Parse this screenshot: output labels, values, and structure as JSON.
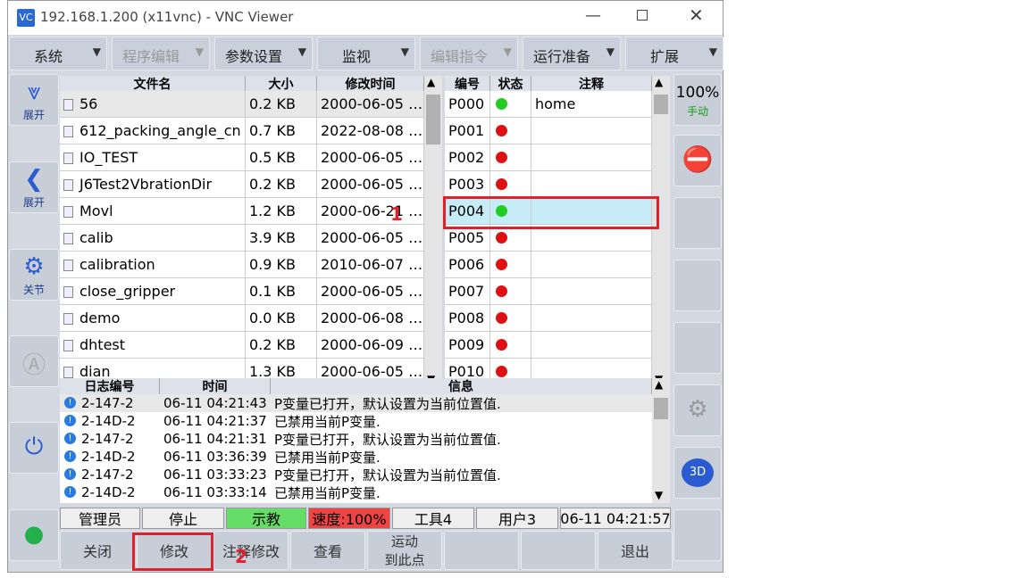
{
  "window": {
    "icon": "VC",
    "title": "192.168.1.200 (x11vnc) - VNC Viewer"
  },
  "menu": [
    {
      "label": "系统",
      "enabled": true
    },
    {
      "label": "程序编辑",
      "enabled": false
    },
    {
      "label": "参数设置",
      "enabled": true
    },
    {
      "label": "监视",
      "enabled": true
    },
    {
      "label": "编辑指令",
      "enabled": false
    },
    {
      "label": "运行准备",
      "enabled": true
    },
    {
      "label": "扩展",
      "enabled": true
    }
  ],
  "left_buttons": [
    "展开",
    "展开",
    "关节"
  ],
  "file_table": {
    "headers": [
      "文件名",
      "大小",
      "修改时间"
    ],
    "rows": [
      [
        "56",
        "0.2 KB",
        "2000-06-05 …"
      ],
      [
        "612_packing_angle_cn",
        "0.7 KB",
        "2022-08-08 …"
      ],
      [
        "IO_TEST",
        "0.5 KB",
        "2000-06-05 …"
      ],
      [
        "J6Test2VbrationDir",
        "0.2 KB",
        "2000-06-05 …"
      ],
      [
        "Movl",
        "1.2 KB",
        "2000-06-21 …"
      ],
      [
        "calib",
        "3.9 KB",
        "2000-06-05 …"
      ],
      [
        "calibration",
        "0.9 KB",
        "2010-06-07 …"
      ],
      [
        "close_gripper",
        "0.1 KB",
        "2000-06-05 …"
      ],
      [
        "demo",
        "0.0 KB",
        "2000-06-08 …"
      ],
      [
        "dhtest",
        "0.2 KB",
        "2000-06-09 …"
      ],
      [
        "dian",
        "1.3 KB",
        "2000-06-05 …"
      ]
    ]
  },
  "point_table": {
    "headers": [
      "编号",
      "状态",
      "注释"
    ],
    "rows": [
      {
        "id": "P000",
        "status": "#22cc22",
        "comment": "home"
      },
      {
        "id": "P001",
        "status": "#dd1111"
      },
      {
        "id": "P002",
        "status": "#dd1111"
      },
      {
        "id": "P003",
        "status": "#dd1111"
      },
      {
        "id": "P004",
        "status": "#22cc22"
      },
      {
        "id": "P005",
        "status": "#dd1111"
      },
      {
        "id": "P006",
        "status": "#dd1111"
      },
      {
        "id": "P007",
        "status": "#dd1111"
      },
      {
        "id": "P008",
        "status": "#dd1111"
      },
      {
        "id": "P009",
        "status": "#dd1111"
      },
      {
        "id": "P010",
        "status": "#dd1111"
      }
    ]
  },
  "log_table": {
    "headers": [
      "日志编号",
      "时间",
      "信息"
    ],
    "rows": [
      [
        "2-147-2",
        "06-11 04:21:43",
        "P变量已打开，默认设置为当前位置值."
      ],
      [
        "2-14D-2",
        "06-11 04:21:37",
        "已禁用当前P变量."
      ],
      [
        "2-147-2",
        "06-11 04:21:31",
        "P变量已打开，默认设置为当前位置值."
      ],
      [
        "2-14D-2",
        "06-11 03:36:39",
        "已禁用当前P变量."
      ],
      [
        "2-147-2",
        "06-11 03:33:23",
        "P变量已打开，默认设置为当前位置值."
      ],
      [
        "2-14D-2",
        "06-11 03:33:14",
        "已禁用当前P变量."
      ]
    ]
  },
  "status_bar": [
    "管理员",
    "停止",
    "示教",
    "速度:100%",
    "工具4",
    "用户3",
    "06-11 04:21:57"
  ],
  "bottom_buttons": [
    "关闭",
    "修改",
    "注释修改",
    "查看",
    [
      "运动",
      "到此点"
    ],
    "退出"
  ],
  "right_panel": {
    "speed": "100%",
    "mode": "手动"
  },
  "annotations": [
    "1",
    "2"
  ]
}
